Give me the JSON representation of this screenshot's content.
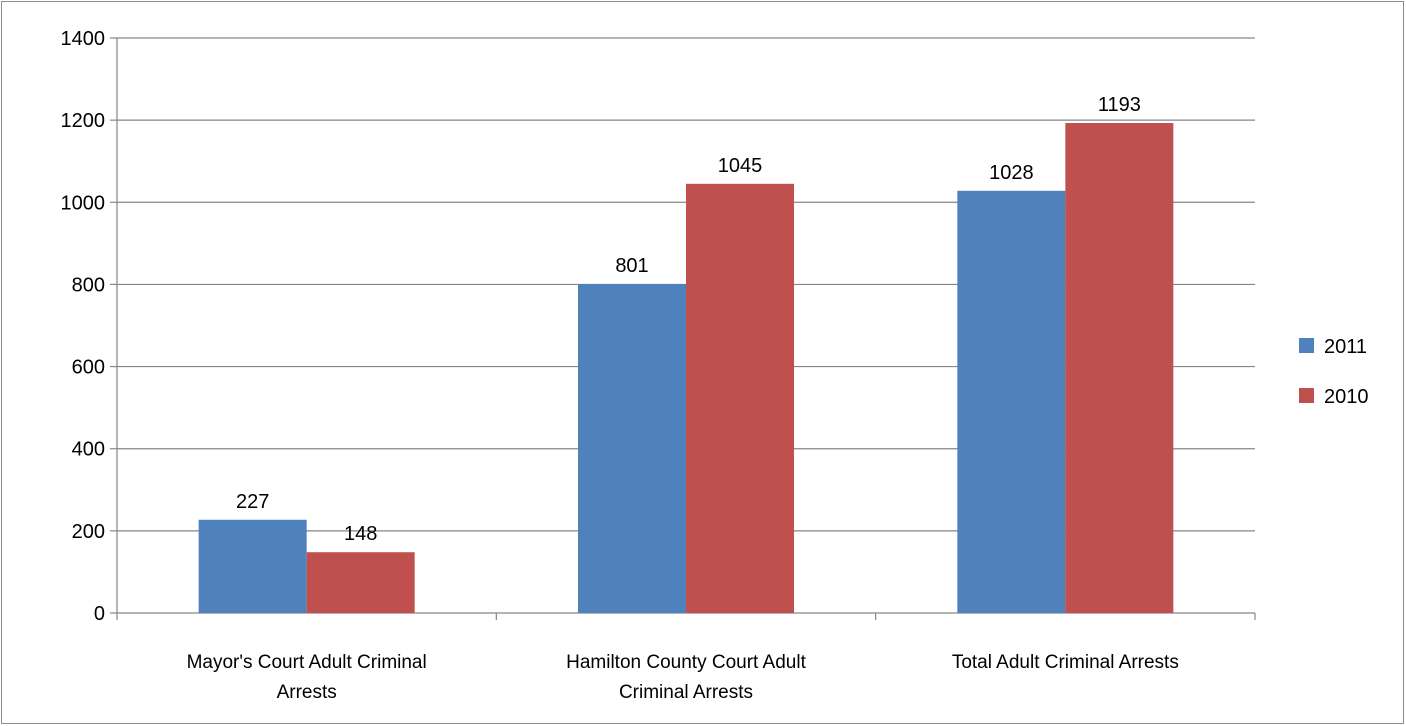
{
  "chart_data": {
    "type": "bar",
    "title": "",
    "xlabel": "",
    "ylabel": "",
    "ylim": [
      0,
      1400
    ],
    "yticks": [
      0,
      200,
      400,
      600,
      800,
      1000,
      1200,
      1400
    ],
    "grid": true,
    "legend_position": "right",
    "categories": [
      [
        "Mayor's Court Adult Criminal",
        "Arrests"
      ],
      [
        "Hamilton County Court Adult",
        "Criminal Arrests"
      ],
      [
        "Total Adult Criminal Arrests"
      ]
    ],
    "series": [
      {
        "name": "2011",
        "color": "#4f81bd",
        "values": [
          227,
          801,
          1028
        ]
      },
      {
        "name": "2010",
        "color": "#c0504d",
        "values": [
          148,
          1045,
          1193
        ]
      }
    ]
  }
}
